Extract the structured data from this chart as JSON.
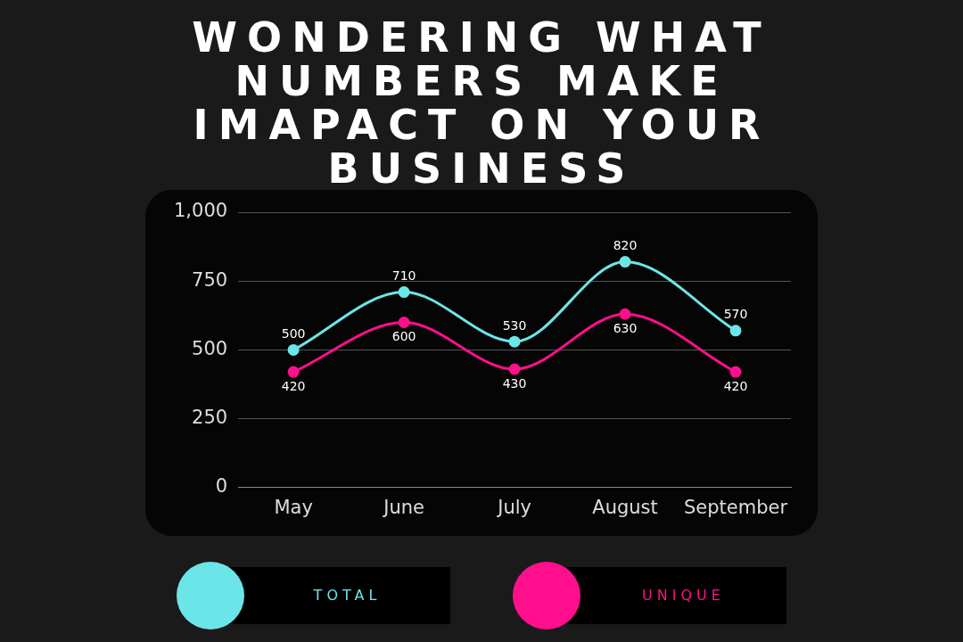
{
  "chart_data": {
    "type": "line",
    "title": "WONDERING WHAT NUMBERS MAKE IMAPACT ON YOUR BUSINESS",
    "categories": [
      "May",
      "June",
      "July",
      "August",
      "September"
    ],
    "series": [
      {
        "name": "TOTAL",
        "color": "#6ce5e8",
        "values": [
          500,
          710,
          530,
          820,
          570
        ]
      },
      {
        "name": "UNIQUE",
        "color": "#ff0f8c",
        "values": [
          420,
          600,
          430,
          630,
          420
        ]
      }
    ],
    "ylim": [
      0,
      1000
    ],
    "yticks": [
      0,
      250,
      500,
      750,
      {
        "value": 1000,
        "label": "1,000"
      }
    ],
    "grid": "y",
    "legend": "bottom",
    "marker": "circle",
    "line_style": "solid",
    "data_labels": true
  }
}
